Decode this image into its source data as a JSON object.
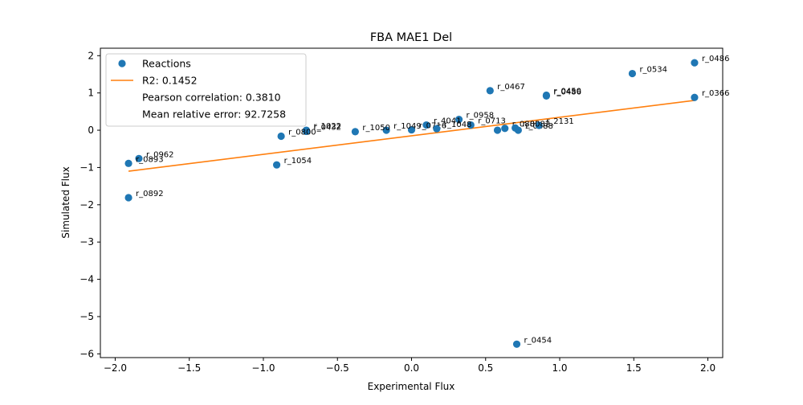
{
  "chart_data": {
    "type": "scatter",
    "title": "FBA MAE1 Del",
    "xlabel": "Experimental Flux",
    "ylabel": "Simulated Flux",
    "xlim": [
      -2.1,
      2.1
    ],
    "ylim": [
      -6.1,
      2.2
    ],
    "xticks": [
      "−2.0",
      "−1.5",
      "−1.0",
      "−0.5",
      "0.0",
      "0.5",
      "1.0",
      "1.5",
      "2.0"
    ],
    "xtick_values": [
      -2.0,
      -1.5,
      -1.0,
      -0.5,
      0.0,
      0.5,
      1.0,
      1.5,
      2.0
    ],
    "yticks": [
      "2",
      "1",
      "0",
      "−1",
      "−2",
      "−3",
      "−4",
      "−5",
      "−6"
    ],
    "ytick_values": [
      2,
      1,
      0,
      -1,
      -2,
      -3,
      -4,
      -5,
      -6
    ],
    "grid": false,
    "legend_position": "top-left",
    "colors": {
      "points": "#1f77b4",
      "fit": "#ff7f0e"
    },
    "series": [
      {
        "name": "Reactions",
        "kind": "points",
        "points": [
          {
            "x": 1.91,
            "y": 1.81,
            "label": "r_0486"
          },
          {
            "x": 1.49,
            "y": 1.52,
            "label": "r_0534"
          },
          {
            "x": 1.91,
            "y": 0.88,
            "label": "r_0366"
          },
          {
            "x": 0.91,
            "y": 0.94,
            "label": "r_0450"
          },
          {
            "x": 0.91,
            "y": 0.92,
            "label": "r_0486"
          },
          {
            "x": 0.53,
            "y": 1.06,
            "label": "r_0467"
          },
          {
            "x": 0.32,
            "y": 0.29,
            "label": "r_0958"
          },
          {
            "x": 0.4,
            "y": 0.14,
            "label": "r_0713"
          },
          {
            "x": 0.1,
            "y": 0.14,
            "label": "r_4041"
          },
          {
            "x": 0.0,
            "y": 0.01,
            "label": "r_0716"
          },
          {
            "x": 0.17,
            "y": 0.04,
            "label": "r_1048"
          },
          {
            "x": -0.17,
            "y": 0.0,
            "label": "r_1049"
          },
          {
            "x": -0.38,
            "y": -0.04,
            "label": "r_1050"
          },
          {
            "x": -0.71,
            "y": 0.0,
            "label": "r_1022"
          },
          {
            "x": -0.71,
            "y": -0.03,
            "label": "r_0432"
          },
          {
            "x": -0.88,
            "y": -0.16,
            "label": "r_0800"
          },
          {
            "x": 0.58,
            "y": 0.0,
            "label": ""
          },
          {
            "x": 0.63,
            "y": 0.05,
            "label": "r_0885"
          },
          {
            "x": 0.72,
            "y": 0.0,
            "label": "r_0888"
          },
          {
            "x": 0.86,
            "y": 0.13,
            "label": "r_2131"
          },
          {
            "x": 0.7,
            "y": 0.06,
            "label": "r_0082"
          },
          {
            "x": -0.91,
            "y": -0.93,
            "label": "r_1054"
          },
          {
            "x": -1.84,
            "y": -0.76,
            "label": "r_0962"
          },
          {
            "x": -1.91,
            "y": -0.89,
            "label": "r_0893"
          },
          {
            "x": -1.91,
            "y": -1.81,
            "label": "r_0892"
          },
          {
            "x": 0.71,
            "y": -5.74,
            "label": "r_0454"
          }
        ]
      },
      {
        "name": "R2: 0.1452",
        "kind": "line",
        "x": [
          -1.91,
          1.91
        ],
        "values": [
          -1.1,
          0.8
        ]
      }
    ],
    "legend": [
      {
        "label": "Reactions",
        "marker": "dot"
      },
      {
        "label": "R2: 0.1452",
        "marker": "line"
      },
      {
        "label": "Pearson correlation: 0.3810",
        "marker": "none"
      },
      {
        "label": "Mean relative error: 92.7258",
        "marker": "none"
      }
    ]
  }
}
